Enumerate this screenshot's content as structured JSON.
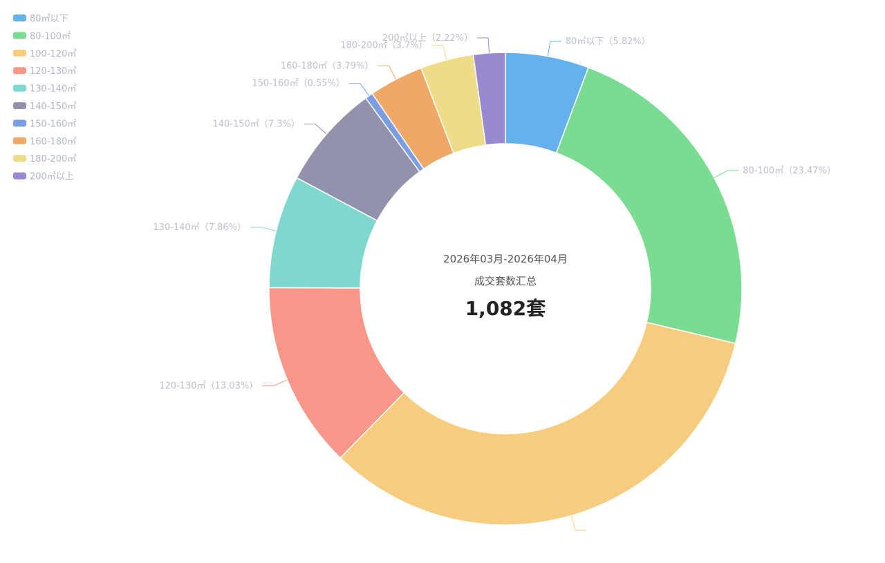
{
  "chart_data": {
    "type": "pie",
    "donut": true,
    "legend_position": "top-left",
    "center": {
      "period": "2026年03月-2026年04月",
      "caption": "成交套数汇总",
      "total": "1,082套"
    },
    "slices": [
      {
        "name": "80㎡以下",
        "label": "80㎡以下（5.82%）",
        "percent": 5.82,
        "color": "#64b1ec",
        "show_label": true
      },
      {
        "name": "80-100㎡",
        "label": "80-100㎡（23.47%）",
        "percent": 23.47,
        "color": "#79dc90",
        "show_label": true
      },
      {
        "name": "100-120㎡",
        "label": "",
        "percent": 34.25,
        "color": "#f8cc7e",
        "show_label": false
      },
      {
        "name": "120-130㎡",
        "label": "120-130㎡（13.03%）",
        "percent": 13.03,
        "color": "#f8968a",
        "show_label": true
      },
      {
        "name": "130-140㎡",
        "label": "130-140㎡（7.86%）",
        "percent": 7.86,
        "color": "#80d7d0",
        "show_label": true
      },
      {
        "name": "140-150㎡",
        "label": "140-150㎡（7.3%）",
        "percent": 7.3,
        "color": "#9093ab",
        "show_label": true
      },
      {
        "name": "150-160㎡",
        "label": "150-160㎡（0.55%）",
        "percent": 0.55,
        "color": "#7a9ee2",
        "show_label": true
      },
      {
        "name": "160-180㎡",
        "label": "160-180㎡（3.79%）",
        "percent": 3.79,
        "color": "#f0a869",
        "show_label": true
      },
      {
        "name": "180-200㎡",
        "label": "180-200㎡（3.7%）",
        "percent": 3.7,
        "color": "#eddd88",
        "show_label": true
      },
      {
        "name": "200㎡以上",
        "label": "200㎡以上（2.22%）",
        "percent": 2.22,
        "color": "#9b89d0",
        "show_label": true
      }
    ]
  }
}
